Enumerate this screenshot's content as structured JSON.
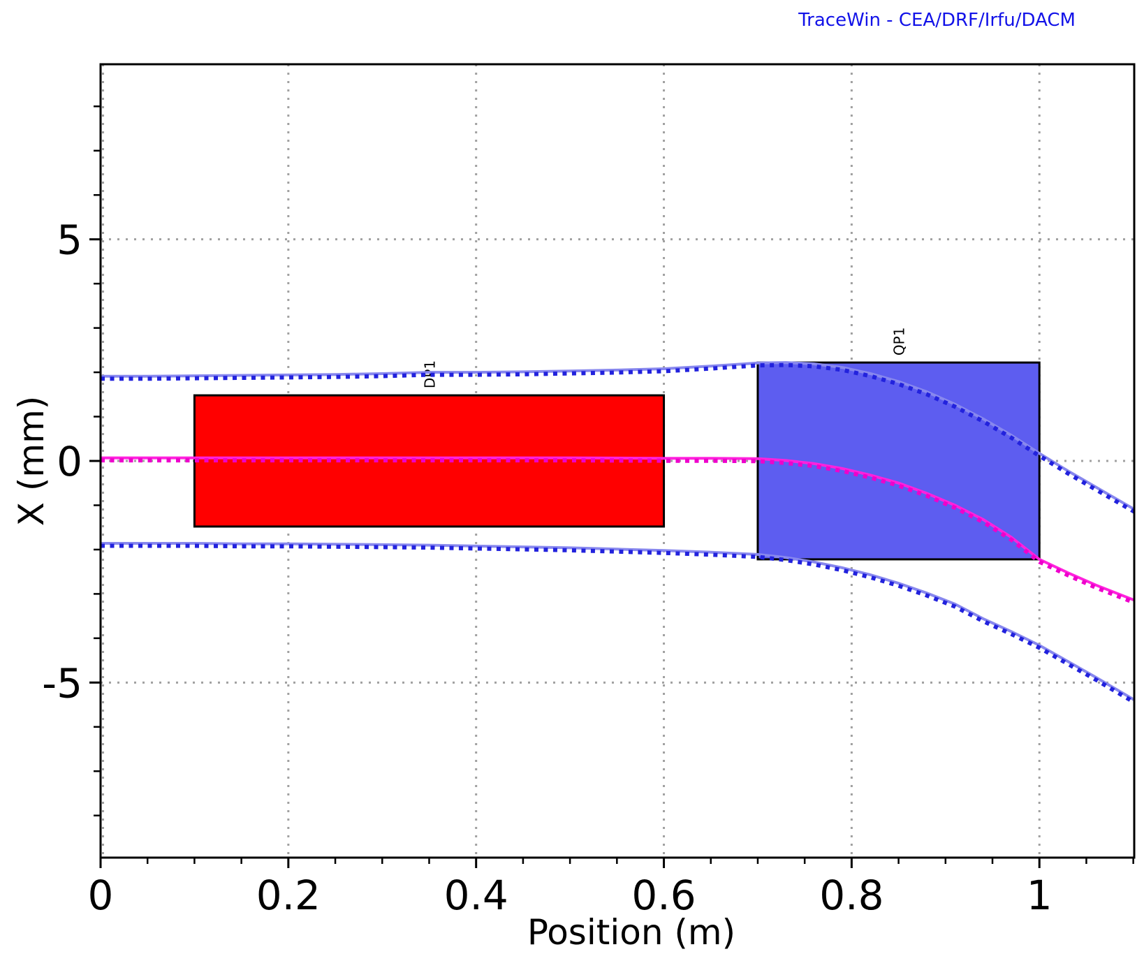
{
  "title": "TraceWin - CEA/DRF/Irfu/DACM",
  "colors": {
    "title_text": "#1212e8",
    "axis": "#000000",
    "grid": "#a0a0a0",
    "envelope_solid": "#8888ee",
    "envelope_dots": "#2222dd",
    "centroid_solid": "#ff22dd",
    "centroid_dots": "#ee00cc",
    "dipole_fill": "#ff0000",
    "quad_fill": "#5d5df0"
  },
  "chart_data": {
    "type": "line",
    "title": "TraceWin - CEA/DRF/Irfu/DACM",
    "xlabel": "Position (m)",
    "ylabel": "X (mm)",
    "xlim": [
      0,
      1.101
    ],
    "ylim": [
      -8.95,
      8.95
    ],
    "grid": "dotted",
    "legend_position": "none",
    "x_major_ticks": [
      0,
      0.2,
      0.4,
      0.6,
      0.8,
      1
    ],
    "x_major_labels": [
      "0",
      "0.2",
      "0.4",
      "0.6",
      "0.8",
      "1"
    ],
    "x_minor_step": 0.05,
    "y_major_ticks": [
      5,
      0,
      -5
    ],
    "y_major_labels": [
      "5",
      "0",
      "-5"
    ],
    "y_minor_step": 1,
    "y_minor_range": [
      -8,
      8
    ],
    "lattice_elements": [
      {
        "name": "DP1",
        "kind": "dipole",
        "x_start": 0.1,
        "x_end": 0.6,
        "aperture_mm": 1.48,
        "fill": "#ff0000",
        "label_rotation_deg": -90
      },
      {
        "name": "QP1",
        "kind": "quadrupole",
        "x_start": 0.7,
        "x_end": 1.0,
        "aperture_mm": 2.22,
        "fill": "#5d5df0",
        "label_rotation_deg": -90
      }
    ],
    "series": [
      {
        "name": "envelope_plus_x",
        "solid_color": "#8888ee",
        "dot_color": "#2222dd",
        "points": [
          [
            0,
            1.91
          ],
          [
            0.05,
            1.91
          ],
          [
            0.1,
            1.92
          ],
          [
            0.15,
            1.93
          ],
          [
            0.2,
            1.94
          ],
          [
            0.25,
            1.95
          ],
          [
            0.3,
            1.97
          ],
          [
            0.35,
            2.0
          ],
          [
            0.4,
            2.0
          ],
          [
            0.45,
            2.01
          ],
          [
            0.5,
            2.03
          ],
          [
            0.55,
            2.05
          ],
          [
            0.6,
            2.08
          ],
          [
            0.65,
            2.14
          ],
          [
            0.7,
            2.21
          ],
          [
            0.73,
            2.22
          ],
          [
            0.76,
            2.19
          ],
          [
            0.79,
            2.11
          ],
          [
            0.82,
            1.97
          ],
          [
            0.85,
            1.79
          ],
          [
            0.88,
            1.56
          ],
          [
            0.91,
            1.28
          ],
          [
            0.94,
            0.95
          ],
          [
            0.97,
            0.58
          ],
          [
            1.0,
            0.17
          ],
          [
            1.03,
            -0.22
          ],
          [
            1.06,
            -0.59
          ],
          [
            1.101,
            -1.09
          ]
        ]
      },
      {
        "name": "beam_centroid_x",
        "solid_color": "#ff22dd",
        "dot_color": "#ee00cc",
        "points": [
          [
            0,
            0.07
          ],
          [
            0.1,
            0.07
          ],
          [
            0.2,
            0.07
          ],
          [
            0.3,
            0.07
          ],
          [
            0.4,
            0.07
          ],
          [
            0.5,
            0.07
          ],
          [
            0.6,
            0.06
          ],
          [
            0.65,
            0.06
          ],
          [
            0.7,
            0.05
          ],
          [
            0.73,
            0.01
          ],
          [
            0.76,
            -0.06
          ],
          [
            0.79,
            -0.17
          ],
          [
            0.82,
            -0.32
          ],
          [
            0.85,
            -0.5
          ],
          [
            0.88,
            -0.73
          ],
          [
            0.91,
            -1.0
          ],
          [
            0.94,
            -1.32
          ],
          [
            0.97,
            -1.72
          ],
          [
            1.0,
            -2.22
          ],
          [
            1.03,
            -2.52
          ],
          [
            1.06,
            -2.8
          ],
          [
            1.101,
            -3.14
          ]
        ]
      },
      {
        "name": "envelope_minus_x",
        "solid_color": "#8888ee",
        "dot_color": "#2222dd",
        "points": [
          [
            0,
            -1.86
          ],
          [
            0.05,
            -1.86
          ],
          [
            0.1,
            -1.86
          ],
          [
            0.15,
            -1.87
          ],
          [
            0.2,
            -1.87
          ],
          [
            0.25,
            -1.88
          ],
          [
            0.3,
            -1.89
          ],
          [
            0.35,
            -1.9
          ],
          [
            0.4,
            -1.92
          ],
          [
            0.45,
            -1.94
          ],
          [
            0.5,
            -1.96
          ],
          [
            0.55,
            -1.99
          ],
          [
            0.6,
            -2.02
          ],
          [
            0.65,
            -2.06
          ],
          [
            0.7,
            -2.11
          ],
          [
            0.73,
            -2.18
          ],
          [
            0.76,
            -2.28
          ],
          [
            0.79,
            -2.41
          ],
          [
            0.82,
            -2.57
          ],
          [
            0.85,
            -2.76
          ],
          [
            0.88,
            -2.98
          ],
          [
            0.91,
            -3.23
          ],
          [
            0.94,
            -3.56
          ],
          [
            0.97,
            -3.85
          ],
          [
            1.0,
            -4.16
          ],
          [
            1.03,
            -4.52
          ],
          [
            1.06,
            -4.88
          ],
          [
            1.101,
            -5.39
          ]
        ]
      }
    ]
  }
}
